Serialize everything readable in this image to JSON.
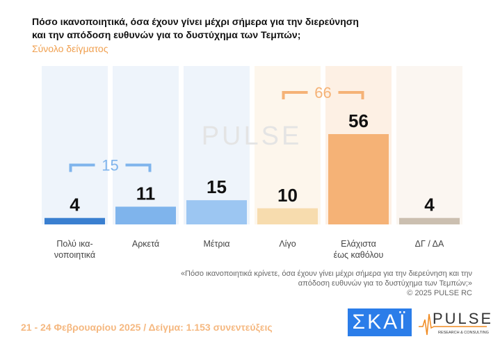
{
  "title": "Πόσο ικανοποιητικά, όσα έχουν γίνει μέχρι σήμερα για την διερεύνηση και την απόδοση ευθυνών για το δυστύχημα των Τεμπών;",
  "subtitle": "Σύνολο δείγματος",
  "chart_data": {
    "type": "bar",
    "categories": [
      "Πολύ ικα-\nνοποιητικά",
      "Αρκετά",
      "Μέτρια",
      "Λίγο",
      "Ελάχιστα\nέως καθόλου",
      "ΔΓ / ΔΑ"
    ],
    "values": [
      4,
      11,
      15,
      10,
      56,
      4
    ],
    "colors": [
      "#3a7fd0",
      "#7fb4ec",
      "#9cc6f2",
      "#f7dcae",
      "#f5b276",
      "#cbbfb0"
    ],
    "band_colors": [
      "#eef4fb",
      "#eef4fb",
      "#eef4fb",
      "#fdf6ec",
      "#fdf0e4",
      "#fbf6f1"
    ],
    "groups": [
      {
        "label": "15",
        "from": 0,
        "to": 1,
        "color": "#7fb4ec"
      },
      {
        "label": "66",
        "from": 3,
        "to": 4,
        "color": "#f5b276"
      }
    ],
    "ylim": [
      0,
      60
    ]
  },
  "watermark": "PULSE",
  "note_line1": "«Πόσο ικανοποιητικά κρίνετε, όσα έχουν γίνει μέχρι σήμερα για την διερεύνηση και την",
  "note_line2": "απόδοση ευθυνών για το δυστύχημα των Τεμπών;»",
  "copyright": "©  2025  PULSE RC",
  "footer": "21 - 24 Φεβρουαρίου 2025  /  Δείγμα:  1.153 συνεντεύξεις",
  "logos": {
    "skai": "ΣΚΑΪ",
    "pulse": "PULSE",
    "pulse_sub": "RESEARCH & CONSULTING"
  }
}
